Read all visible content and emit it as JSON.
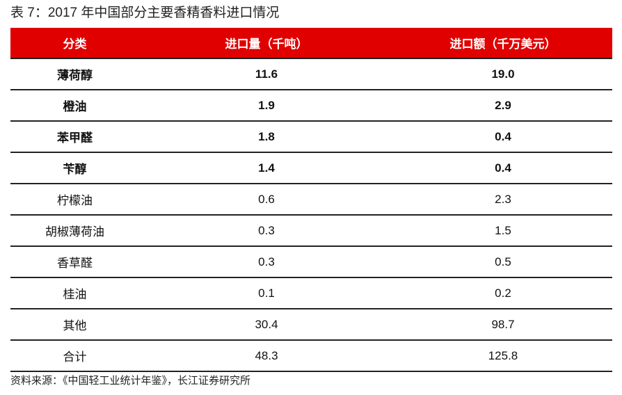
{
  "title": "表 7：2017 年中国部分主要香精香料进口情况",
  "table": {
    "headers": [
      "分类",
      "进口量（千吨）",
      "进口额（千万美元）"
    ],
    "rows": [
      {
        "name": "薄荷醇",
        "volume": "11.6",
        "value": "19.0",
        "bold": true
      },
      {
        "name": "橙油",
        "volume": "1.9",
        "value": "2.9",
        "bold": true
      },
      {
        "name": "苯甲醛",
        "volume": "1.8",
        "value": "0.4",
        "bold": true
      },
      {
        "name": "苄醇",
        "volume": "1.4",
        "value": "0.4",
        "bold": true
      },
      {
        "name": "柠檬油",
        "volume": "0.6",
        "value": "2.3",
        "bold": false
      },
      {
        "name": "胡椒薄荷油",
        "volume": "0.3",
        "value": "1.5",
        "bold": false
      },
      {
        "name": "香草醛",
        "volume": "0.3",
        "value": "0.5",
        "bold": false
      },
      {
        "name": "桂油",
        "volume": "0.1",
        "value": "0.2",
        "bold": false
      },
      {
        "name": "其他",
        "volume": "30.4",
        "value": "98.7",
        "bold": false
      },
      {
        "name": "合计",
        "volume": "48.3",
        "value": "125.8",
        "bold": false
      }
    ]
  },
  "source": "资料来源：《中国轻工业统计年鉴》，长江证券研究所",
  "colors": {
    "header_bg": "#e00000",
    "header_text": "#ffffff"
  }
}
